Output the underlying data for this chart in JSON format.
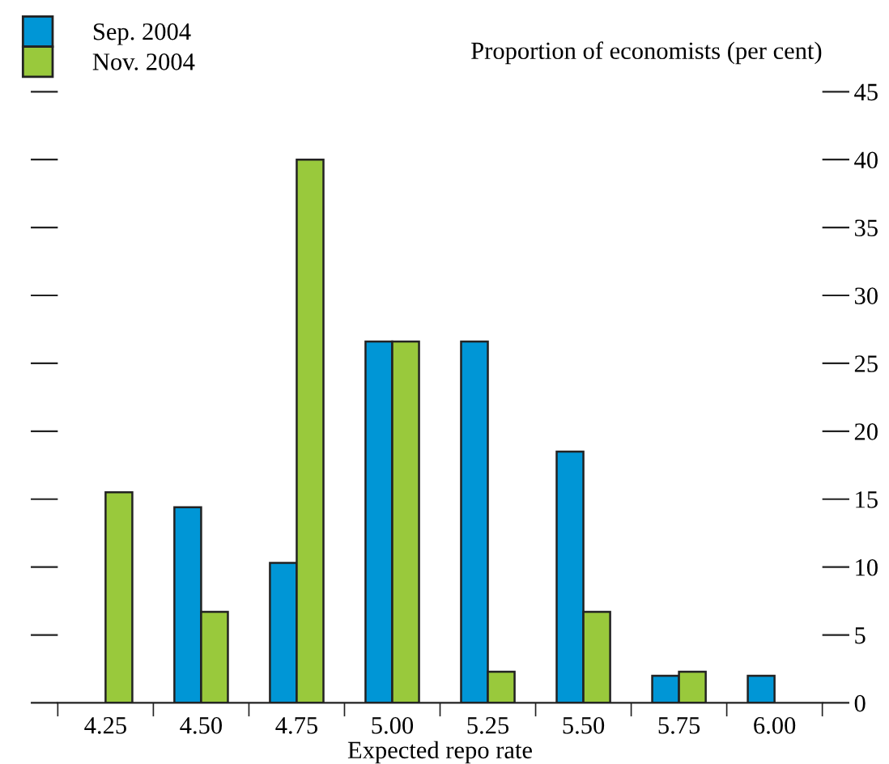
{
  "chart_data": {
    "type": "bar",
    "xlabel": "Expected repo rate",
    "ylabel": "Proportion of economists (per cent)",
    "categories": [
      "4.25",
      "4.50",
      "4.75",
      "5.00",
      "5.25",
      "5.50",
      "5.75",
      "6.00"
    ],
    "series": [
      {
        "name": "Sep. 2004",
        "color": "#0096d6",
        "values": [
          null,
          14.4,
          10.3,
          26.6,
          26.6,
          18.5,
          2.0,
          2.0
        ]
      },
      {
        "name": "Nov. 2004",
        "color": "#99c93c",
        "values": [
          15.5,
          6.7,
          40,
          26.6,
          2.3,
          6.7,
          2.3,
          null
        ]
      }
    ],
    "ylim": [
      0,
      45
    ],
    "yticks": [
      0,
      5,
      10,
      15,
      20,
      25,
      30,
      35,
      40,
      45
    ],
    "grid": false,
    "legend": "top left"
  }
}
